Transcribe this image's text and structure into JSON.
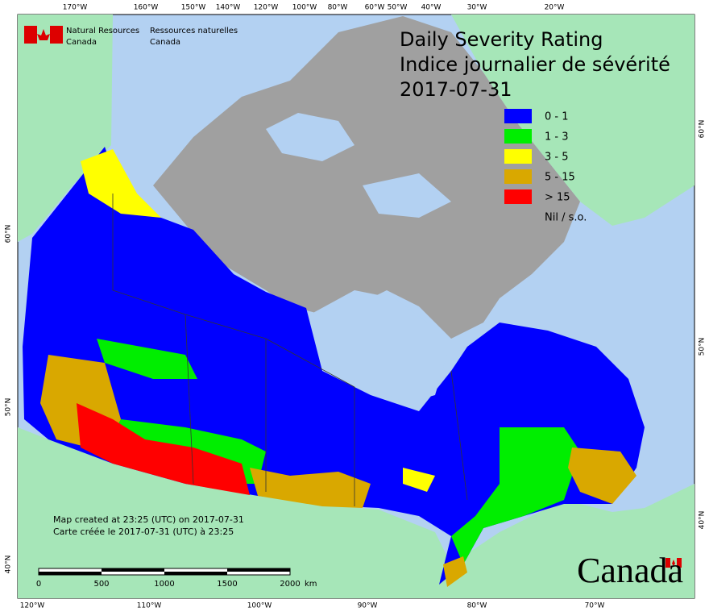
{
  "agency": {
    "english": [
      "Natural Resources",
      "Canada"
    ],
    "french": [
      "Ressources naturelles",
      "Canada"
    ]
  },
  "title": [
    "Daily Severity Rating",
    "Indice journalier de sévérité",
    "2017-07-31"
  ],
  "legend": [
    {
      "label": "0 - 1",
      "color": "#0000ff"
    },
    {
      "label": "1 - 3",
      "color": "#00ee00"
    },
    {
      "label": "3 - 5",
      "color": "#ffff00"
    },
    {
      "label": "5 - 15",
      "color": "#d9a800"
    },
    {
      "label": "> 15",
      "color": "#ff0000"
    },
    {
      "label": "Nil / s.o.",
      "color": "#a0a0a0"
    }
  ],
  "graticule": {
    "top": [
      "170°W",
      "160°W",
      "150°W",
      "140°W",
      "120°W",
      "100°W",
      "80°W",
      "60°W",
      "50°W",
      "40°W",
      "30°W",
      "20°W"
    ],
    "bottom": [
      "120°W",
      "110°W",
      "100°W",
      "90°W",
      "80°W",
      "70°W"
    ],
    "left": [
      "60°N",
      "50°N",
      "40°N"
    ],
    "right": [
      "60°N",
      "50°N",
      "40°N"
    ]
  },
  "scale_bar": {
    "ticks": [
      "0",
      "500",
      "1000",
      "1500",
      "2000"
    ],
    "unit": "km"
  },
  "footnote": [
    "Map created at 23:25 (UTC) on 2017-07-31",
    "Carte créée le 2017-07-31 (UTC) à 23:25"
  ],
  "wordmark": "Canada"
}
